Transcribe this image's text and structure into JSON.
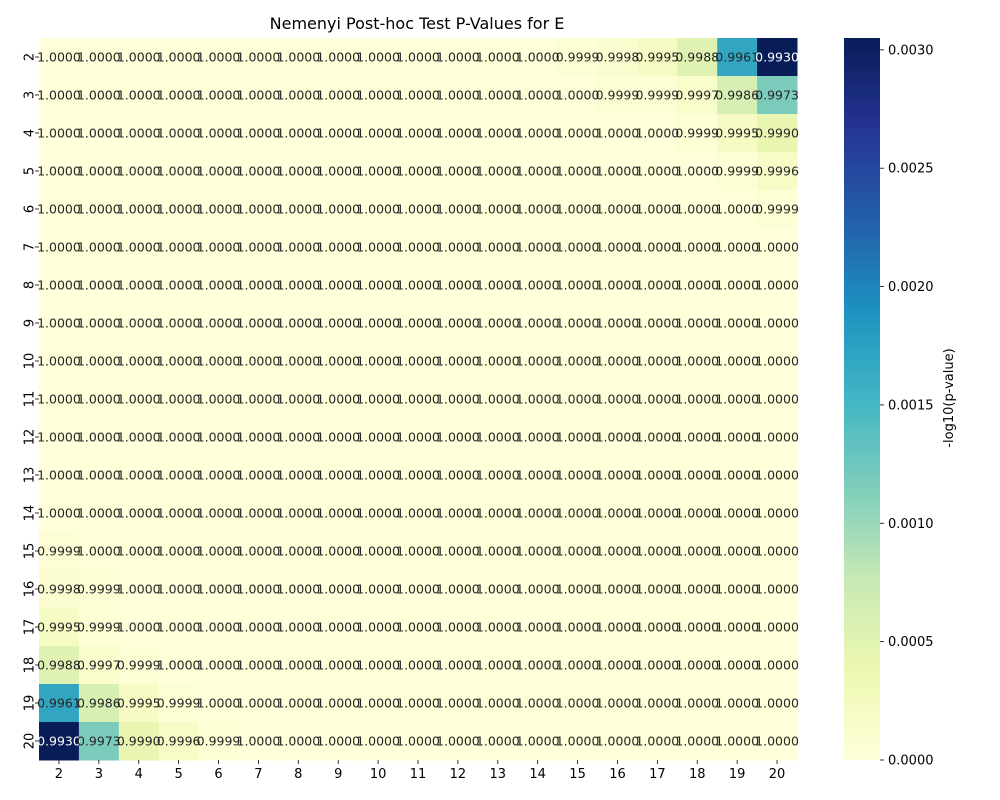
{
  "chart_data": {
    "type": "heatmap",
    "title": "Nemenyi Post-hoc Test P-Values for E",
    "xlabel": "",
    "ylabel": "",
    "x_categories": [
      "2",
      "3",
      "4",
      "5",
      "6",
      "7",
      "8",
      "9",
      "10",
      "11",
      "12",
      "13",
      "14",
      "15",
      "16",
      "17",
      "18",
      "19",
      "20"
    ],
    "y_categories": [
      "2",
      "3",
      "4",
      "5",
      "6",
      "7",
      "8",
      "9",
      "10",
      "11",
      "12",
      "13",
      "14",
      "15",
      "16",
      "17",
      "18",
      "19",
      "20"
    ],
    "annotations": [
      [
        "1.0000",
        "1.0000",
        "1.0000",
        "1.0000",
        "1.0000",
        "1.0000",
        "1.0000",
        "1.0000",
        "1.0000",
        "1.0000",
        "1.0000",
        "1.0000",
        "1.0000",
        "0.9999",
        "0.9998",
        "0.9995",
        "0.9988",
        "0.9961",
        "0.9930"
      ],
      [
        "1.0000",
        "1.0000",
        "1.0000",
        "1.0000",
        "1.0000",
        "1.0000",
        "1.0000",
        "1.0000",
        "1.0000",
        "1.0000",
        "1.0000",
        "1.0000",
        "1.0000",
        "1.0000",
        "0.9999",
        "0.9999",
        "0.9997",
        "0.9986",
        "0.9973"
      ],
      [
        "1.0000",
        "1.0000",
        "1.0000",
        "1.0000",
        "1.0000",
        "1.0000",
        "1.0000",
        "1.0000",
        "1.0000",
        "1.0000",
        "1.0000",
        "1.0000",
        "1.0000",
        "1.0000",
        "1.0000",
        "1.0000",
        "0.9999",
        "0.9995",
        "0.9990"
      ],
      [
        "1.0000",
        "1.0000",
        "1.0000",
        "1.0000",
        "1.0000",
        "1.0000",
        "1.0000",
        "1.0000",
        "1.0000",
        "1.0000",
        "1.0000",
        "1.0000",
        "1.0000",
        "1.0000",
        "1.0000",
        "1.0000",
        "1.0000",
        "0.9999",
        "0.9996"
      ],
      [
        "1.0000",
        "1.0000",
        "1.0000",
        "1.0000",
        "1.0000",
        "1.0000",
        "1.0000",
        "1.0000",
        "1.0000",
        "1.0000",
        "1.0000",
        "1.0000",
        "1.0000",
        "1.0000",
        "1.0000",
        "1.0000",
        "1.0000",
        "1.0000",
        "0.9999"
      ],
      [
        "1.0000",
        "1.0000",
        "1.0000",
        "1.0000",
        "1.0000",
        "1.0000",
        "1.0000",
        "1.0000",
        "1.0000",
        "1.0000",
        "1.0000",
        "1.0000",
        "1.0000",
        "1.0000",
        "1.0000",
        "1.0000",
        "1.0000",
        "1.0000",
        "1.0000"
      ],
      [
        "1.0000",
        "1.0000",
        "1.0000",
        "1.0000",
        "1.0000",
        "1.0000",
        "1.0000",
        "1.0000",
        "1.0000",
        "1.0000",
        "1.0000",
        "1.0000",
        "1.0000",
        "1.0000",
        "1.0000",
        "1.0000",
        "1.0000",
        "1.0000",
        "1.0000"
      ],
      [
        "1.0000",
        "1.0000",
        "1.0000",
        "1.0000",
        "1.0000",
        "1.0000",
        "1.0000",
        "1.0000",
        "1.0000",
        "1.0000",
        "1.0000",
        "1.0000",
        "1.0000",
        "1.0000",
        "1.0000",
        "1.0000",
        "1.0000",
        "1.0000",
        "1.0000"
      ],
      [
        "1.0000",
        "1.0000",
        "1.0000",
        "1.0000",
        "1.0000",
        "1.0000",
        "1.0000",
        "1.0000",
        "1.0000",
        "1.0000",
        "1.0000",
        "1.0000",
        "1.0000",
        "1.0000",
        "1.0000",
        "1.0000",
        "1.0000",
        "1.0000",
        "1.0000"
      ],
      [
        "1.0000",
        "1.0000",
        "1.0000",
        "1.0000",
        "1.0000",
        "1.0000",
        "1.0000",
        "1.0000",
        "1.0000",
        "1.0000",
        "1.0000",
        "1.0000",
        "1.0000",
        "1.0000",
        "1.0000",
        "1.0000",
        "1.0000",
        "1.0000",
        "1.0000"
      ],
      [
        "1.0000",
        "1.0000",
        "1.0000",
        "1.0000",
        "1.0000",
        "1.0000",
        "1.0000",
        "1.0000",
        "1.0000",
        "1.0000",
        "1.0000",
        "1.0000",
        "1.0000",
        "1.0000",
        "1.0000",
        "1.0000",
        "1.0000",
        "1.0000",
        "1.0000"
      ],
      [
        "1.0000",
        "1.0000",
        "1.0000",
        "1.0000",
        "1.0000",
        "1.0000",
        "1.0000",
        "1.0000",
        "1.0000",
        "1.0000",
        "1.0000",
        "1.0000",
        "1.0000",
        "1.0000",
        "1.0000",
        "1.0000",
        "1.0000",
        "1.0000",
        "1.0000"
      ],
      [
        "1.0000",
        "1.0000",
        "1.0000",
        "1.0000",
        "1.0000",
        "1.0000",
        "1.0000",
        "1.0000",
        "1.0000",
        "1.0000",
        "1.0000",
        "1.0000",
        "1.0000",
        "1.0000",
        "1.0000",
        "1.0000",
        "1.0000",
        "1.0000",
        "1.0000"
      ],
      [
        "0.9999",
        "1.0000",
        "1.0000",
        "1.0000",
        "1.0000",
        "1.0000",
        "1.0000",
        "1.0000",
        "1.0000",
        "1.0000",
        "1.0000",
        "1.0000",
        "1.0000",
        "1.0000",
        "1.0000",
        "1.0000",
        "1.0000",
        "1.0000",
        "1.0000"
      ],
      [
        "0.9998",
        "0.9999",
        "1.0000",
        "1.0000",
        "1.0000",
        "1.0000",
        "1.0000",
        "1.0000",
        "1.0000",
        "1.0000",
        "1.0000",
        "1.0000",
        "1.0000",
        "1.0000",
        "1.0000",
        "1.0000",
        "1.0000",
        "1.0000",
        "1.0000"
      ],
      [
        "0.9995",
        "0.9999",
        "1.0000",
        "1.0000",
        "1.0000",
        "1.0000",
        "1.0000",
        "1.0000",
        "1.0000",
        "1.0000",
        "1.0000",
        "1.0000",
        "1.0000",
        "1.0000",
        "1.0000",
        "1.0000",
        "1.0000",
        "1.0000",
        "1.0000"
      ],
      [
        "0.9988",
        "0.9997",
        "0.9999",
        "1.0000",
        "1.0000",
        "1.0000",
        "1.0000",
        "1.0000",
        "1.0000",
        "1.0000",
        "1.0000",
        "1.0000",
        "1.0000",
        "1.0000",
        "1.0000",
        "1.0000",
        "1.0000",
        "1.0000",
        "1.0000"
      ],
      [
        "0.9961",
        "0.9986",
        "0.9995",
        "0.9999",
        "1.0000",
        "1.0000",
        "1.0000",
        "1.0000",
        "1.0000",
        "1.0000",
        "1.0000",
        "1.0000",
        "1.0000",
        "1.0000",
        "1.0000",
        "1.0000",
        "1.0000",
        "1.0000",
        "1.0000"
      ],
      [
        "0.9930",
        "0.9973",
        "0.9990",
        "0.9996",
        "0.9999",
        "1.0000",
        "1.0000",
        "1.0000",
        "1.0000",
        "1.0000",
        "1.0000",
        "1.0000",
        "1.0000",
        "1.0000",
        "1.0000",
        "1.0000",
        "1.0000",
        "1.0000",
        "1.0000"
      ]
    ],
    "colorbar": {
      "label": "-log10(p-value)",
      "range": [
        0,
        0.00305
      ],
      "ticks": [
        0,
        0.0005,
        0.001,
        0.0015,
        0.002,
        0.0025,
        0.003
      ],
      "tick_labels": [
        "0.0000",
        "0.0005",
        "0.0010",
        "0.0015",
        "0.0020",
        "0.0025",
        "0.0030"
      ],
      "colormap": "YlGnBu",
      "colors": [
        "#ffffd9",
        "#edf8b1",
        "#c7e9b4",
        "#7fcdbb",
        "#41b6c4",
        "#1d91c0",
        "#225ea8",
        "#253494",
        "#081d58"
      ]
    },
    "grid": false
  }
}
